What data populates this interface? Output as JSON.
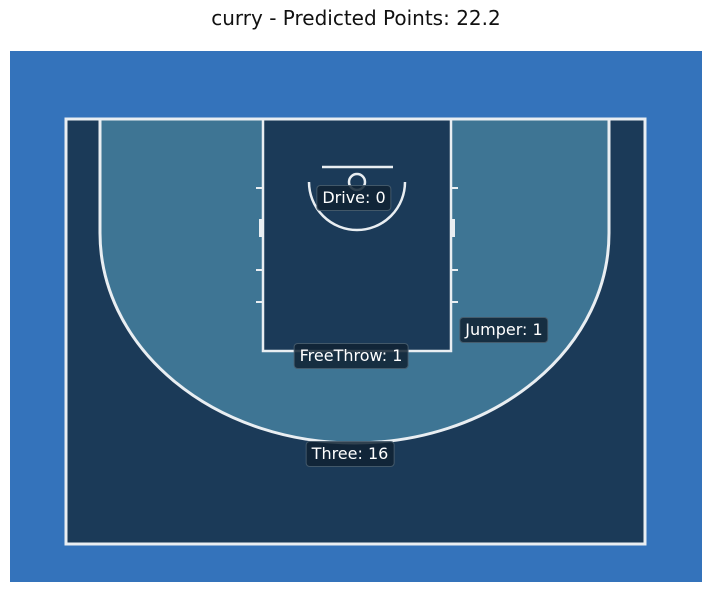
{
  "title": "curry - Predicted Points: 22.2",
  "colors": {
    "background": "#3473bb",
    "court": "#1b3a58",
    "inside_arc": "#3e7594",
    "lines": "#e9eef2",
    "label_bg": "#0f2233"
  },
  "chart_data": {
    "type": "annotated-court",
    "title": "curry - Predicted Points: 22.2",
    "player": "curry",
    "predicted_points": 22.2,
    "shot_types": [
      {
        "name": "Drive",
        "value": 0,
        "label": "Drive: 0"
      },
      {
        "name": "Jumper",
        "value": 1,
        "label": "Jumper: 1"
      },
      {
        "name": "FreeThrow",
        "value": 1,
        "label": "FreeThrow: 1"
      },
      {
        "name": "Three",
        "value": 16,
        "label": "Three: 16"
      }
    ]
  }
}
